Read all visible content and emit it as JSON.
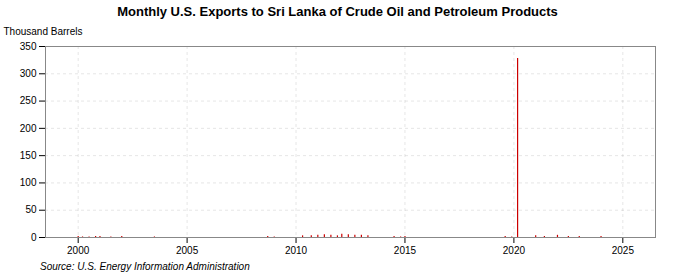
{
  "chart_data": {
    "type": "bar",
    "title": "Monthly U.S. Exports to Sri Lanka of Crude Oil and Petroleum Products",
    "ylabel": "Thousand Barrels",
    "source": "Source: U.S. Energy Information Administration",
    "x": [
      2000.0,
      2000.2,
      2000.5,
      2000.8,
      2001.0,
      2001.5,
      2002.0,
      2003.5,
      2008.7,
      2009.0,
      2010.3,
      2010.7,
      2011.0,
      2011.3,
      2011.6,
      2011.9,
      2012.1,
      2012.4,
      2012.7,
      2013.0,
      2013.3,
      2014.5,
      2014.8,
      2015.0,
      2019.6,
      2019.9,
      2021.0,
      2021.4,
      2022.0,
      2022.5,
      2023.0,
      2024.0,
      2020.17
    ],
    "values": [
      2,
      1,
      1,
      2,
      2,
      1,
      2,
      1,
      2,
      1,
      3,
      3,
      4,
      5,
      4,
      3,
      6,
      5,
      4,
      4,
      3,
      2,
      1,
      2,
      2,
      1,
      3,
      2,
      4,
      2,
      2,
      2,
      328
    ],
    "color": "#cc0000",
    "xlim": [
      1998.5,
      2026.5
    ],
    "ylim": [
      0,
      350
    ],
    "xticks": [
      2000,
      2005,
      2010,
      2015,
      2020,
      2025
    ],
    "yticks": [
      0,
      50,
      100,
      150,
      200,
      250,
      300,
      350
    ],
    "grid": true
  }
}
